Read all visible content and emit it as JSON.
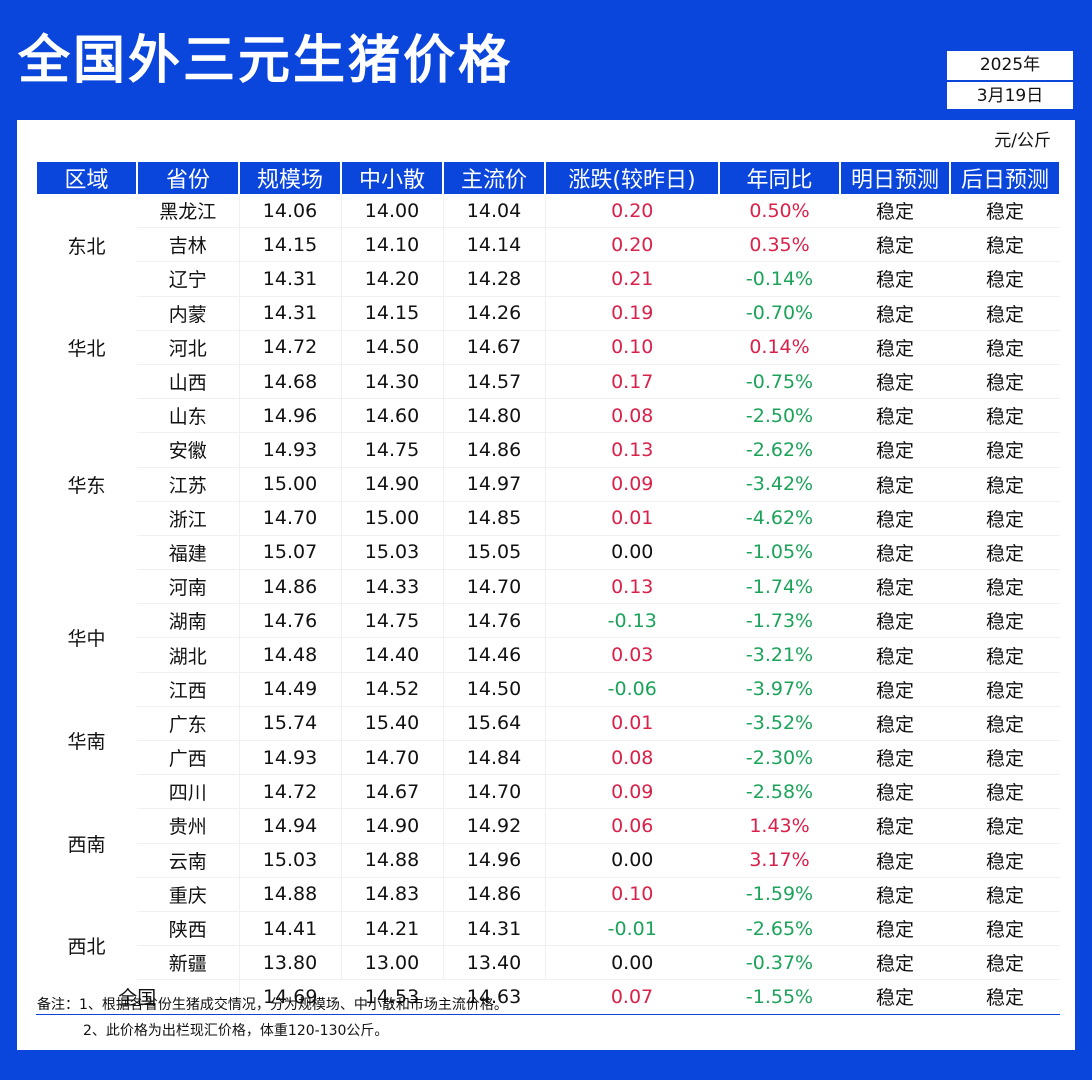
{
  "title": "全国外三元生猪价格",
  "date": {
    "year": "2025年",
    "day": "3月19日"
  },
  "unit": "元/公斤",
  "headers": [
    "区域",
    "省份",
    "规模场",
    "中小散",
    "主流价",
    "涨跌(较昨日)",
    "年同比",
    "明日预测",
    "后日预测"
  ],
  "groups": [
    {
      "region": "东北",
      "rows": [
        {
          "province": "黑龙江",
          "large": "14.06",
          "small": "14.00",
          "main": "14.04",
          "change": "0.20",
          "yoy": "0.50%",
          "tomorrow": "稳定",
          "dayafter": "稳定",
          "change_color": "red",
          "yoy_color": "red"
        },
        {
          "province": "吉林",
          "large": "14.15",
          "small": "14.10",
          "main": "14.14",
          "change": "0.20",
          "yoy": "0.35%",
          "tomorrow": "稳定",
          "dayafter": "稳定",
          "change_color": "red",
          "yoy_color": "red"
        },
        {
          "province": "辽宁",
          "large": "14.31",
          "small": "14.20",
          "main": "14.28",
          "change": "0.21",
          "yoy": "-0.14%",
          "tomorrow": "稳定",
          "dayafter": "稳定",
          "change_color": "red",
          "yoy_color": "green"
        }
      ]
    },
    {
      "region": "华北",
      "rows": [
        {
          "province": "内蒙",
          "large": "14.31",
          "small": "14.15",
          "main": "14.26",
          "change": "0.19",
          "yoy": "-0.70%",
          "tomorrow": "稳定",
          "dayafter": "稳定",
          "change_color": "red",
          "yoy_color": "green"
        },
        {
          "province": "河北",
          "large": "14.72",
          "small": "14.50",
          "main": "14.67",
          "change": "0.10",
          "yoy": "0.14%",
          "tomorrow": "稳定",
          "dayafter": "稳定",
          "change_color": "red",
          "yoy_color": "red"
        },
        {
          "province": "山西",
          "large": "14.68",
          "small": "14.30",
          "main": "14.57",
          "change": "0.17",
          "yoy": "-0.75%",
          "tomorrow": "稳定",
          "dayafter": "稳定",
          "change_color": "red",
          "yoy_color": "green"
        }
      ]
    },
    {
      "region": "华东",
      "rows": [
        {
          "province": "山东",
          "large": "14.96",
          "small": "14.60",
          "main": "14.80",
          "change": "0.08",
          "yoy": "-2.50%",
          "tomorrow": "稳定",
          "dayafter": "稳定",
          "change_color": "red",
          "yoy_color": "green"
        },
        {
          "province": "安徽",
          "large": "14.93",
          "small": "14.75",
          "main": "14.86",
          "change": "0.13",
          "yoy": "-2.62%",
          "tomorrow": "稳定",
          "dayafter": "稳定",
          "change_color": "red",
          "yoy_color": "green"
        },
        {
          "province": "江苏",
          "large": "15.00",
          "small": "14.90",
          "main": "14.97",
          "change": "0.09",
          "yoy": "-3.42%",
          "tomorrow": "稳定",
          "dayafter": "稳定",
          "change_color": "red",
          "yoy_color": "green"
        },
        {
          "province": "浙江",
          "large": "14.70",
          "small": "15.00",
          "main": "14.85",
          "change": "0.01",
          "yoy": "-4.62%",
          "tomorrow": "稳定",
          "dayafter": "稳定",
          "change_color": "red",
          "yoy_color": "green"
        },
        {
          "province": "福建",
          "large": "15.07",
          "small": "15.03",
          "main": "15.05",
          "change": "0.00",
          "yoy": "-1.05%",
          "tomorrow": "稳定",
          "dayafter": "稳定",
          "change_color": "black",
          "yoy_color": "green"
        }
      ]
    },
    {
      "region": "华中",
      "rows": [
        {
          "province": "河南",
          "large": "14.86",
          "small": "14.33",
          "main": "14.70",
          "change": "0.13",
          "yoy": "-1.74%",
          "tomorrow": "稳定",
          "dayafter": "稳定",
          "change_color": "red",
          "yoy_color": "green"
        },
        {
          "province": "湖南",
          "large": "14.76",
          "small": "14.75",
          "main": "14.76",
          "change": "-0.13",
          "yoy": "-1.73%",
          "tomorrow": "稳定",
          "dayafter": "稳定",
          "change_color": "green",
          "yoy_color": "green"
        },
        {
          "province": "湖北",
          "large": "14.48",
          "small": "14.40",
          "main": "14.46",
          "change": "0.03",
          "yoy": "-3.21%",
          "tomorrow": "稳定",
          "dayafter": "稳定",
          "change_color": "red",
          "yoy_color": "green"
        },
        {
          "province": "江西",
          "large": "14.49",
          "small": "14.52",
          "main": "14.50",
          "change": "-0.06",
          "yoy": "-3.97%",
          "tomorrow": "稳定",
          "dayafter": "稳定",
          "change_color": "green",
          "yoy_color": "green"
        }
      ]
    },
    {
      "region": "华南",
      "rows": [
        {
          "province": "广东",
          "large": "15.74",
          "small": "15.40",
          "main": "15.64",
          "change": "0.01",
          "yoy": "-3.52%",
          "tomorrow": "稳定",
          "dayafter": "稳定",
          "change_color": "red",
          "yoy_color": "green"
        },
        {
          "province": "广西",
          "large": "14.93",
          "small": "14.70",
          "main": "14.84",
          "change": "0.08",
          "yoy": "-2.30%",
          "tomorrow": "稳定",
          "dayafter": "稳定",
          "change_color": "red",
          "yoy_color": "green"
        }
      ]
    },
    {
      "region": "西南",
      "rows": [
        {
          "province": "四川",
          "large": "14.72",
          "small": "14.67",
          "main": "14.70",
          "change": "0.09",
          "yoy": "-2.58%",
          "tomorrow": "稳定",
          "dayafter": "稳定",
          "change_color": "red",
          "yoy_color": "green"
        },
        {
          "province": "贵州",
          "large": "14.94",
          "small": "14.90",
          "main": "14.92",
          "change": "0.06",
          "yoy": "1.43%",
          "tomorrow": "稳定",
          "dayafter": "稳定",
          "change_color": "red",
          "yoy_color": "red"
        },
        {
          "province": "云南",
          "large": "15.03",
          "small": "14.88",
          "main": "14.96",
          "change": "0.00",
          "yoy": "3.17%",
          "tomorrow": "稳定",
          "dayafter": "稳定",
          "change_color": "black",
          "yoy_color": "red"
        },
        {
          "province": "重庆",
          "large": "14.88",
          "small": "14.83",
          "main": "14.86",
          "change": "0.10",
          "yoy": "-1.59%",
          "tomorrow": "稳定",
          "dayafter": "稳定",
          "change_color": "red",
          "yoy_color": "green"
        }
      ]
    },
    {
      "region": "西北",
      "rows": [
        {
          "province": "陕西",
          "large": "14.41",
          "small": "14.21",
          "main": "14.31",
          "change": "-0.01",
          "yoy": "-2.65%",
          "tomorrow": "稳定",
          "dayafter": "稳定",
          "change_color": "green",
          "yoy_color": "green"
        },
        {
          "province": "新疆",
          "large": "13.80",
          "small": "13.00",
          "main": "13.40",
          "change": "0.00",
          "yoy": "-0.37%",
          "tomorrow": "稳定",
          "dayafter": "稳定",
          "change_color": "black",
          "yoy_color": "green"
        }
      ]
    }
  ],
  "total": {
    "label": "全国",
    "large": "14.69",
    "small": "14.53",
    "main": "14.63",
    "change": "0.07",
    "yoy": "-1.55%",
    "tomorrow": "稳定",
    "dayafter": "稳定",
    "change_color": "red",
    "yoy_color": "green"
  },
  "notes": [
    "备注：1、根据各省份生猪成交情况，分为规模场、中小散和市场主流价格。",
    "2、此价格为出栏现汇价格，体重120-130公斤。"
  ]
}
